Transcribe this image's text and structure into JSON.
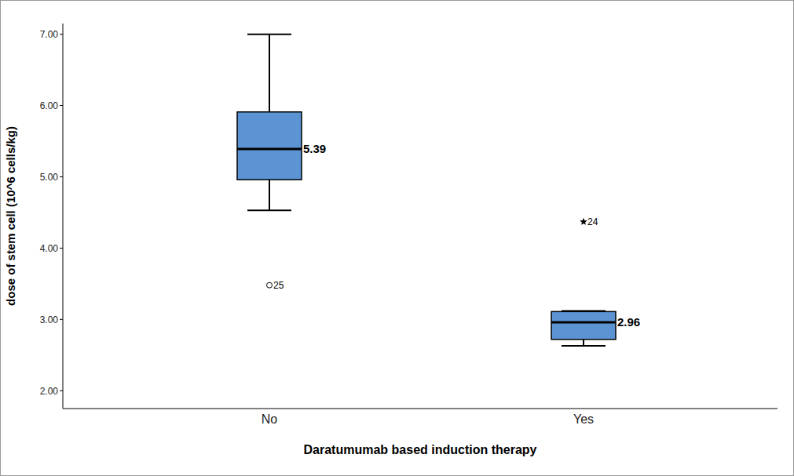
{
  "chart_data": {
    "type": "box",
    "x_label": "Daratumumab based induction therapy",
    "y_label": "dose of stem cell (10^6 cells/kg)",
    "categories": [
      "No",
      "Yes"
    ],
    "boxes": [
      {
        "min": 4.53,
        "q1": 4.96,
        "median": 5.39,
        "q3": 5.91,
        "max": 7.0,
        "outliers": [
          {
            "value": 3.48,
            "label": "25"
          }
        ],
        "marker": "circle"
      },
      {
        "min": 2.63,
        "q1": 2.72,
        "median": 2.96,
        "q3": 3.11,
        "max": 3.12,
        "outliers": [
          {
            "value": 4.37,
            "label": "24"
          }
        ],
        "marker": "star"
      }
    ],
    "color": "#5b93d3",
    "ylim": [
      1.75,
      7.15
    ],
    "yticks": [
      {
        "value": 2,
        "label": "2.00"
      },
      {
        "value": 3,
        "label": "3.00"
      },
      {
        "value": 4,
        "label": "4.00"
      },
      {
        "value": 5,
        "label": "5.00"
      },
      {
        "value": 6,
        "label": "6.00"
      },
      {
        "value": 7,
        "label": "7.00"
      }
    ],
    "data_labels": true,
    "grid": false
  }
}
